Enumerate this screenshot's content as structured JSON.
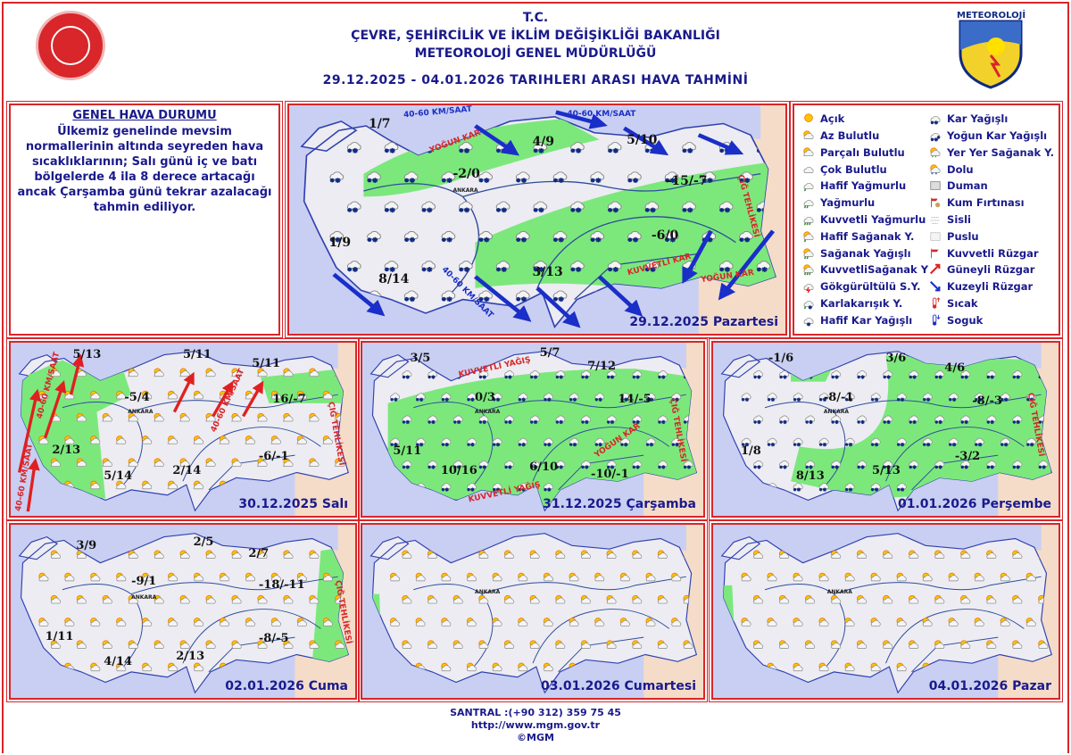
{
  "header": {
    "line1": "T.C.",
    "line2": "ÇEVRE, ŞEHİRCİLİK VE İKLİM DEĞİŞİKLİĞİ BAKANLIĞI",
    "line3": "METEOROLOJİ  GENEL  MÜDÜRLÜĞÜ",
    "dates": "29.12.2025  -  04.01.2026   TARIHLERI  ARASI  HAVA  TAHMİNİ"
  },
  "logos": {
    "right_text": "METEOROLOJİ"
  },
  "general": {
    "title": "GENEL HAVA DURUMU",
    "body": "Ülkemiz genelinde mevsim normallerinin altında seyreden hava sıcaklıklarının; Salı günü iç ve batı bölgelerde 4 ila 8 derece artacağı ancak Çarşamba günü tekrar azalacağı tahmin ediliyor."
  },
  "legend": {
    "left": [
      {
        "icon": "sun",
        "label": "Açık"
      },
      {
        "icon": "sun-cloud",
        "label": "Az Bulutlu"
      },
      {
        "icon": "partly-cloudy",
        "label": "Parçalı Bulutlu"
      },
      {
        "icon": "cloud",
        "label": "Çok Bulutlu"
      },
      {
        "icon": "light-rain",
        "label": "Hafif Yağmurlu"
      },
      {
        "icon": "rain",
        "label": "Yağmurlu"
      },
      {
        "icon": "heavy-rain",
        "label": "Kuvvetli Yağmurlu"
      },
      {
        "icon": "light-shower",
        "label": "Hafif Sağanak Y."
      },
      {
        "icon": "shower",
        "label": "Sağanak Yağışlı"
      },
      {
        "icon": "heavy-shower",
        "label": "KuvvetliSağanak Y"
      },
      {
        "icon": "thunder",
        "label": "Gökgürültülü S.Y."
      },
      {
        "icon": "sleet",
        "label": "Karlakarışık Y."
      },
      {
        "icon": "light-snow",
        "label": "Hafif Kar Yağışlı"
      }
    ],
    "right": [
      {
        "icon": "snow",
        "label": "Kar Yağışlı"
      },
      {
        "icon": "heavy-snow",
        "label": "Yoğun Kar Yağışlı"
      },
      {
        "icon": "local-shower",
        "label": "Yer Yer Sağanak Y."
      },
      {
        "icon": "hail",
        "label": "Dolu"
      },
      {
        "icon": "smoke",
        "label": "Duman"
      },
      {
        "icon": "sandstorm",
        "label": "Kum Fırtınası"
      },
      {
        "icon": "fog",
        "label": "Sisli"
      },
      {
        "icon": "haze",
        "label": "Puslu"
      },
      {
        "icon": "strong-wind",
        "label": "Kuvvetli Rüzgar"
      },
      {
        "icon": "south-wind",
        "label": "Güneyli Rüzgar"
      },
      {
        "icon": "north-wind",
        "label": "Kuzeyli Rüzgar"
      },
      {
        "icon": "hot",
        "label": "Sıcak"
      },
      {
        "icon": "cold",
        "label": "Soguk"
      }
    ]
  },
  "colors": {
    "sea": "#c9cff2",
    "land": "#ececf2",
    "green": "#7ce87c",
    "neighbor": "#f4dcc8",
    "border": "#d8262a",
    "text": "#1a1a8c"
  },
  "panels": [
    {
      "date": "29.12.2025 Pazartesi",
      "city": "ANKARA",
      "dominant_icon": "snow",
      "temps": [
        "1/7",
        "4/9",
        "5/10",
        "-2/0",
        "-15/-7",
        "1/9",
        "8/14",
        "3/13",
        "-6/0"
      ],
      "wind": [
        "40-60 KM/SAAT",
        "40-60 KM/SAAT",
        "40-60 KM/SAAT"
      ],
      "warnings": [
        "YOĞUN KAR",
        "ÇIĞ TEHLİKESİ",
        "KUVVETLİ KAR",
        "YOĞUN KAR"
      ]
    },
    {
      "date": "30.12.2025 Salı",
      "city": "ANKARA",
      "dominant_icon": "partly-cloudy",
      "temps": [
        "5/13",
        "5/11",
        "5/11",
        "-5/4",
        "16/-7",
        "2/13",
        "5/14",
        "2/14",
        "-6/-1"
      ],
      "warnings": [
        "40-60 KM/SAAT",
        "40-60 KM/SAAT",
        "40-60 KM/SAAT",
        "ÇIĞ TEHLİKESİ"
      ]
    },
    {
      "date": "31.12.2025 Çarşamba",
      "city": "ANKARA",
      "dominant_icon": "snow",
      "temps": [
        "3/5",
        "5/7",
        "7/12",
        "0/3",
        "14/-5",
        "5/11",
        "10/16",
        "6/10",
        "-10/-1"
      ],
      "warnings": [
        "KUVVETLİ YAĞIŞ",
        "KUVVETLİ YAĞIŞ",
        "YOĞUN KAR",
        "ÇIĞ TEHLİKESİ"
      ]
    },
    {
      "date": "01.01.2026 Perşembe",
      "city": "ANKARA",
      "dominant_icon": "snow",
      "temps": [
        "-1/6",
        "3/6",
        "4/6",
        "-8/-1",
        "-8/-3",
        "1/8",
        "8/13",
        "5/13",
        "-3/2"
      ],
      "warnings": [
        "ÇIĞ TEHLİKESİ"
      ]
    },
    {
      "date": "02.01.2026 Cuma",
      "city": "ANKARA",
      "dominant_icon": "sun-cloud",
      "temps": [
        "3/9",
        "2/5",
        "2/7",
        "-9/1",
        "-18/-11",
        "1/11",
        "4/14",
        "2/13",
        "-8/-5"
      ],
      "warnings": [
        "ÇIĞ TEHLİKESİ"
      ]
    },
    {
      "date": "03.01.2026 Cumartesi",
      "city": "ANKARA",
      "dominant_icon": "sun-cloud"
    },
    {
      "date": "04.01.2026 Pazar",
      "city": "ANKARA",
      "dominant_icon": "sun-cloud"
    }
  ],
  "footer": {
    "phone": "SANTRAL :(+90 312) 359 75 45",
    "url": "http://www.mgm.gov.tr",
    "copyright": "©MGM"
  }
}
